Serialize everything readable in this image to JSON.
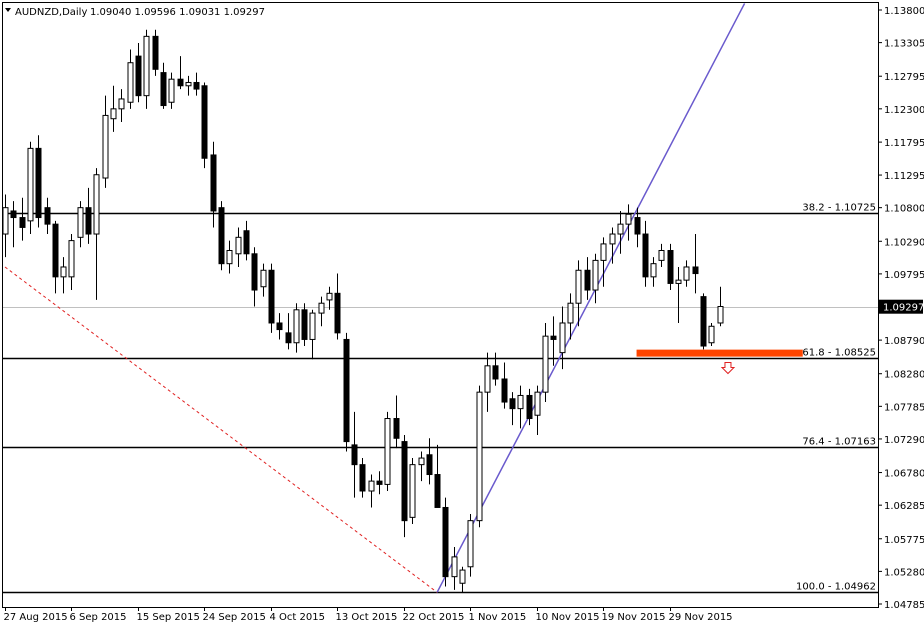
{
  "header": {
    "symbol": "AUDNZD,Daily",
    "ohlc": "1.09040 1.09596 1.09031 1.09297"
  },
  "colors": {
    "background": "#ffffff",
    "frame": "#000000",
    "bull_body": "#ffffff",
    "bear_body": "#000000",
    "trendline": "#6a5acd",
    "fib_dashed": "#e02020",
    "support_zone": "#ff4500",
    "current_price_line": "#c0c0c0",
    "down_arrow": "#e02020"
  },
  "chart_data": {
    "type": "candlestick",
    "symbol": "AUDNZD",
    "timeframe": "Daily",
    "ylim": [
      1.04785,
      1.138
    ],
    "y_ticks": [
      "1.13800",
      "1.13305",
      "1.12795",
      "1.12300",
      "1.11795",
      "1.11295",
      "1.10800",
      "1.10290",
      "1.09795",
      "1.09297",
      "1.08790",
      "1.08280",
      "1.07785",
      "1.07290",
      "1.06780",
      "1.06285",
      "1.05775",
      "1.05280",
      "1.04785"
    ],
    "current_price": "1.09297",
    "x_tick_labels": [
      "27 Aug 2015",
      "6 Sep 2015",
      "15 Sep 2015",
      "24 Sep 2015",
      "4 Oct 2015",
      "13 Oct 2015",
      "22 Oct 2015",
      "1 Nov 2015",
      "10 Nov 2015",
      "19 Nov 2015",
      "29 Nov 2015"
    ],
    "fib_levels": [
      {
        "label": "38.2 - 1.10725",
        "price": 1.10725
      },
      {
        "label": "61.8 - 1.08525",
        "price": 1.08525
      },
      {
        "label": "76.4 - 1.07163",
        "price": 1.07163
      },
      {
        "label": "100.0 - 1.04962",
        "price": 1.04962
      }
    ],
    "support_zone": {
      "from_index": 76,
      "to_index": 96,
      "low": 1.08525,
      "high": 1.086
    },
    "trendline": {
      "from": {
        "index": 52,
        "price": 1.04962
      },
      "to": {
        "index": 89,
        "price": 1.139
      }
    },
    "fib_dashed_line": {
      "from": {
        "index": 0,
        "price": 1.099
      },
      "to": {
        "index": 52,
        "price": 1.04962
      }
    },
    "candles": [
      {
        "o": 1.104,
        "h": 1.11,
        "l": 1.1005,
        "c": 1.108
      },
      {
        "o": 1.1075,
        "h": 1.109,
        "l": 1.102,
        "c": 1.1065
      },
      {
        "o": 1.1065,
        "h": 1.1095,
        "l": 1.103,
        "c": 1.105
      },
      {
        "o": 1.106,
        "h": 1.118,
        "l": 1.104,
        "c": 1.117
      },
      {
        "o": 1.117,
        "h": 1.119,
        "l": 1.105,
        "c": 1.1065
      },
      {
        "o": 1.108,
        "h": 1.1095,
        "l": 1.104,
        "c": 1.1055
      },
      {
        "o": 1.1055,
        "h": 1.106,
        "l": 1.095,
        "c": 1.0975
      },
      {
        "o": 1.0975,
        "h": 1.1005,
        "l": 1.095,
        "c": 1.099
      },
      {
        "o": 1.0975,
        "h": 1.104,
        "l": 1.0955,
        "c": 1.103
      },
      {
        "o": 1.1035,
        "h": 1.109,
        "l": 1.102,
        "c": 1.108
      },
      {
        "o": 1.108,
        "h": 1.111,
        "l": 1.1025,
        "c": 1.104
      },
      {
        "o": 1.104,
        "h": 1.114,
        "l": 1.094,
        "c": 1.113
      },
      {
        "o": 1.1125,
        "h": 1.125,
        "l": 1.111,
        "c": 1.122
      },
      {
        "o": 1.1215,
        "h": 1.1265,
        "l": 1.1195,
        "c": 1.123
      },
      {
        "o": 1.123,
        "h": 1.126,
        "l": 1.121,
        "c": 1.1245
      },
      {
        "o": 1.124,
        "h": 1.132,
        "l": 1.123,
        "c": 1.13
      },
      {
        "o": 1.131,
        "h": 1.133,
        "l": 1.124,
        "c": 1.125
      },
      {
        "o": 1.125,
        "h": 1.135,
        "l": 1.123,
        "c": 1.134
      },
      {
        "o": 1.134,
        "h": 1.135,
        "l": 1.128,
        "c": 1.129
      },
      {
        "o": 1.1285,
        "h": 1.13,
        "l": 1.123,
        "c": 1.1235
      },
      {
        "o": 1.124,
        "h": 1.1285,
        "l": 1.123,
        "c": 1.1275
      },
      {
        "o": 1.1275,
        "h": 1.131,
        "l": 1.126,
        "c": 1.1265
      },
      {
        "o": 1.1265,
        "h": 1.128,
        "l": 1.125,
        "c": 1.127
      },
      {
        "o": 1.127,
        "h": 1.1285,
        "l": 1.125,
        "c": 1.126
      },
      {
        "o": 1.1265,
        "h": 1.127,
        "l": 1.114,
        "c": 1.1155
      },
      {
        "o": 1.116,
        "h": 1.118,
        "l": 1.105,
        "c": 1.1075
      },
      {
        "o": 1.108,
        "h": 1.109,
        "l": 1.0985,
        "c": 1.0995
      },
      {
        "o": 1.0995,
        "h": 1.103,
        "l": 1.098,
        "c": 1.1015
      },
      {
        "o": 1.101,
        "h": 1.105,
        "l": 1.099,
        "c": 1.1035
      },
      {
        "o": 1.1045,
        "h": 1.106,
        "l": 1.1,
        "c": 1.101
      },
      {
        "o": 1.101,
        "h": 1.102,
        "l": 1.093,
        "c": 1.0955
      },
      {
        "o": 1.096,
        "h": 1.0995,
        "l": 1.0945,
        "c": 1.0985
      },
      {
        "o": 1.0985,
        "h": 1.0995,
        "l": 1.089,
        "c": 1.0905
      },
      {
        "o": 1.0905,
        "h": 1.092,
        "l": 1.088,
        "c": 1.0895
      },
      {
        "o": 1.089,
        "h": 1.092,
        "l": 1.0865,
        "c": 1.0875
      },
      {
        "o": 1.0875,
        "h": 1.0935,
        "l": 1.086,
        "c": 1.0925
      },
      {
        "o": 1.0925,
        "h": 1.0935,
        "l": 1.087,
        "c": 1.088
      },
      {
        "o": 1.088,
        "h": 1.0925,
        "l": 1.085,
        "c": 1.092
      },
      {
        "o": 1.092,
        "h": 1.0945,
        "l": 1.09,
        "c": 1.0935
      },
      {
        "o": 1.094,
        "h": 1.096,
        "l": 1.0925,
        "c": 1.095
      },
      {
        "o": 1.095,
        "h": 1.098,
        "l": 1.088,
        "c": 1.089
      },
      {
        "o": 1.088,
        "h": 1.089,
        "l": 1.071,
        "c": 1.0725
      },
      {
        "o": 1.072,
        "h": 1.077,
        "l": 1.064,
        "c": 1.069
      },
      {
        "o": 1.069,
        "h": 1.07,
        "l": 1.064,
        "c": 1.065
      },
      {
        "o": 1.065,
        "h": 1.0675,
        "l": 1.0625,
        "c": 1.0665
      },
      {
        "o": 1.0665,
        "h": 1.068,
        "l": 1.0645,
        "c": 1.066
      },
      {
        "o": 1.066,
        "h": 1.077,
        "l": 1.065,
        "c": 1.076
      },
      {
        "o": 1.076,
        "h": 1.0795,
        "l": 1.0715,
        "c": 1.073
      },
      {
        "o": 1.0725,
        "h": 1.0735,
        "l": 1.058,
        "c": 1.0605
      },
      {
        "o": 1.061,
        "h": 1.07,
        "l": 1.06,
        "c": 1.069
      },
      {
        "o": 1.069,
        "h": 1.071,
        "l": 1.0665,
        "c": 1.07
      },
      {
        "o": 1.0705,
        "h": 1.073,
        "l": 1.066,
        "c": 1.0675
      },
      {
        "o": 1.0675,
        "h": 1.072,
        "l": 1.063,
        "c": 1.0625
      },
      {
        "o": 1.0625,
        "h": 1.064,
        "l": 1.0505,
        "c": 1.052
      },
      {
        "o": 1.052,
        "h": 1.0565,
        "l": 1.05,
        "c": 1.055
      },
      {
        "o": 1.051,
        "h": 1.0535,
        "l": 1.0496,
        "c": 1.053
      },
      {
        "o": 1.0535,
        "h": 1.0615,
        "l": 1.052,
        "c": 1.0605
      },
      {
        "o": 1.0605,
        "h": 1.081,
        "l": 1.0595,
        "c": 1.08
      },
      {
        "o": 1.08,
        "h": 1.086,
        "l": 1.077,
        "c": 1.084
      },
      {
        "o": 1.084,
        "h": 1.086,
        "l": 1.081,
        "c": 1.082
      },
      {
        "o": 1.082,
        "h": 1.0845,
        "l": 1.0775,
        "c": 1.0785
      },
      {
        "o": 1.079,
        "h": 1.08,
        "l": 1.075,
        "c": 1.0775
      },
      {
        "o": 1.0775,
        "h": 1.081,
        "l": 1.0745,
        "c": 1.0795
      },
      {
        "o": 1.0795,
        "h": 1.0805,
        "l": 1.075,
        "c": 1.076
      },
      {
        "o": 1.0765,
        "h": 1.081,
        "l": 1.0735,
        "c": 1.08
      },
      {
        "o": 1.08,
        "h": 1.0905,
        "l": 1.0785,
        "c": 1.0885
      },
      {
        "o": 1.0885,
        "h": 1.0915,
        "l": 1.084,
        "c": 1.088
      },
      {
        "o": 1.086,
        "h": 1.093,
        "l": 1.0835,
        "c": 1.0905
      },
      {
        "o": 1.0905,
        "h": 1.095,
        "l": 1.088,
        "c": 1.0935
      },
      {
        "o": 1.0935,
        "h": 1.1,
        "l": 1.09,
        "c": 1.0985
      },
      {
        "o": 1.0985,
        "h": 1.1005,
        "l": 1.094,
        "c": 1.0955
      },
      {
        "o": 1.0955,
        "h": 1.101,
        "l": 1.0935,
        "c": 1.1
      },
      {
        "o": 1.1,
        "h": 1.1035,
        "l": 1.096,
        "c": 1.1025
      },
      {
        "o": 1.1025,
        "h": 1.105,
        "l": 1.0995,
        "c": 1.104
      },
      {
        "o": 1.104,
        "h": 1.1075,
        "l": 1.101,
        "c": 1.1055
      },
      {
        "o": 1.1055,
        "h": 1.1085,
        "l": 1.103,
        "c": 1.107
      },
      {
        "o": 1.1065,
        "h": 1.108,
        "l": 1.102,
        "c": 1.104
      },
      {
        "o": 1.104,
        "h": 1.106,
        "l": 1.096,
        "c": 1.0975
      },
      {
        "o": 1.0975,
        "h": 1.1005,
        "l": 1.096,
        "c": 1.0995
      },
      {
        "o": 1.1,
        "h": 1.1025,
        "l": 1.099,
        "c": 1.1015
      },
      {
        "o": 1.1015,
        "h": 1.1025,
        "l": 1.0955,
        "c": 1.0965
      },
      {
        "o": 1.0965,
        "h": 1.099,
        "l": 1.0905,
        "c": 1.097
      },
      {
        "o": 1.097,
        "h": 1.1,
        "l": 1.096,
        "c": 1.099
      },
      {
        "o": 1.099,
        "h": 1.104,
        "l": 1.095,
        "c": 1.098
      },
      {
        "o": 1.0945,
        "h": 1.095,
        "l": 1.0865,
        "c": 1.087
      },
      {
        "o": 1.0875,
        "h": 1.0905,
        "l": 1.087,
        "c": 1.09
      },
      {
        "o": 1.0905,
        "h": 1.096,
        "l": 1.09,
        "c": 1.093
      }
    ]
  }
}
